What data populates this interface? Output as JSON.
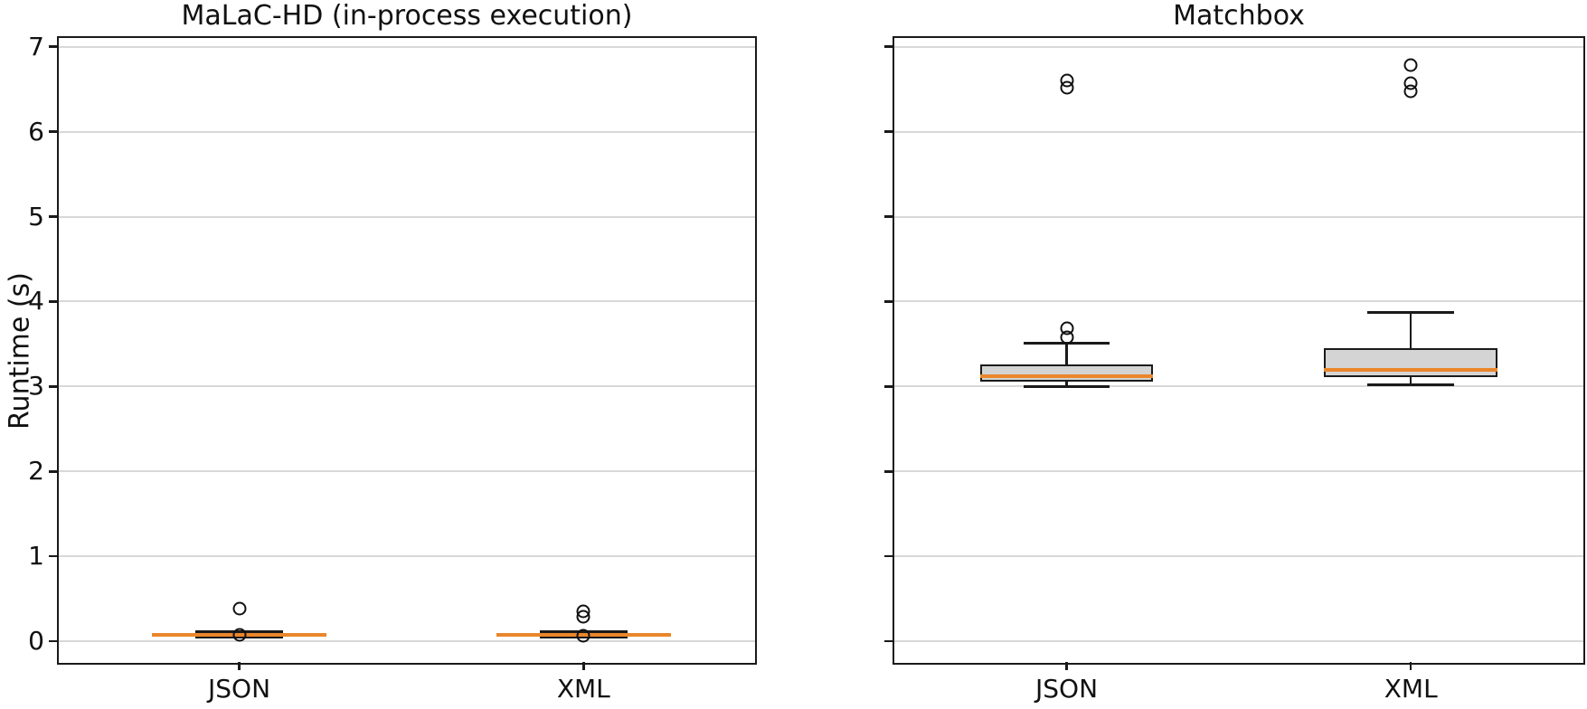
{
  "figure": {
    "background": "#ffffff"
  },
  "colors": {
    "median": "#ea862b",
    "box_fill": "#d4d4d4",
    "box_edge": "#1a1a1a",
    "grid": "#d8d8d8",
    "spine": "#1a1a1a",
    "text": "#111111"
  },
  "chart_data": [
    {
      "type": "boxplot",
      "title": "MaLaC-HD (in-process execution)",
      "ylabel": "Runtime (s)",
      "xlabel": "",
      "categories": [
        "JSON",
        "XML"
      ],
      "yticks": [
        0,
        1,
        2,
        3,
        4,
        5,
        6,
        7
      ],
      "ylim": [
        -0.27,
        7.13
      ],
      "grid": true,
      "legend": "none",
      "series": [
        {
          "name": "JSON",
          "q1": 0.065,
          "median": 0.08,
          "q3": 0.095,
          "whisker_low": 0.045,
          "whisker_high": 0.115,
          "outliers": [
            0.39,
            0.08
          ]
        },
        {
          "name": "XML",
          "q1": 0.065,
          "median": 0.08,
          "q3": 0.095,
          "whisker_low": 0.045,
          "whisker_high": 0.115,
          "outliers": [
            0.35,
            0.29,
            0.07
          ]
        }
      ],
      "layout": {
        "axes_rect": [
          63,
          40,
          774,
          695
        ],
        "centers": [
          0.261,
          0.753
        ],
        "ytick_labels": true
      }
    },
    {
      "type": "boxplot",
      "title": "Matchbox",
      "ylabel": "",
      "xlabel": "",
      "categories": [
        "JSON",
        "XML"
      ],
      "yticks": [
        0,
        1,
        2,
        3,
        4,
        5,
        6,
        7
      ],
      "ylim": [
        -0.27,
        7.13
      ],
      "grid": true,
      "legend": "none",
      "series": [
        {
          "name": "JSON",
          "q1": 3.06,
          "median": 3.12,
          "q3": 3.26,
          "whisker_low": 3.0,
          "whisker_high": 3.51,
          "outliers": [
            3.58,
            3.69,
            6.52,
            6.6
          ]
        },
        {
          "name": "XML",
          "q1": 3.11,
          "median": 3.2,
          "q3": 3.45,
          "whisker_low": 3.02,
          "whisker_high": 3.87,
          "outliers": [
            6.47,
            6.57,
            6.78
          ]
        }
      ],
      "layout": {
        "axes_rect": [
          987,
          40,
          766,
          695
        ],
        "centers": [
          0.252,
          0.749
        ],
        "ytick_labels": false
      }
    }
  ]
}
